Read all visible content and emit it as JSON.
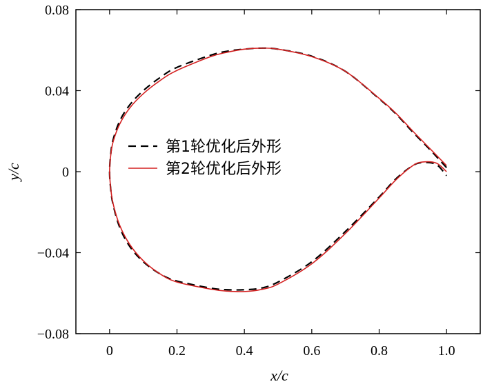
{
  "chart_data": {
    "type": "line",
    "xlabel": "x/c",
    "ylabel": "y/c",
    "xlim": [
      -0.1,
      1.1
    ],
    "ylim": [
      -0.08,
      0.08
    ],
    "xticks": [
      0,
      0.2,
      0.4,
      0.6,
      0.8,
      1.0
    ],
    "xtick_labels": [
      "0",
      "0.2",
      "0.4",
      "0.6",
      "0.8",
      "1.0"
    ],
    "yticks": [
      -0.08,
      -0.04,
      0,
      0.04,
      0.08
    ],
    "ytick_labels": [
      "−0.08",
      "−0.04",
      "0",
      "0.04",
      "0.08"
    ],
    "grid": false,
    "legend_position": "center-left",
    "series": [
      {
        "name": "第1轮优化后外形",
        "color": "#000000",
        "dash": "dashed",
        "x": [
          1.0,
          0.95,
          0.9,
          0.85,
          0.8,
          0.7,
          0.6,
          0.5,
          0.45,
          0.4,
          0.35,
          0.3,
          0.2,
          0.15,
          0.1,
          0.06,
          0.03,
          0.01,
          0.003,
          0.0,
          0.003,
          0.01,
          0.03,
          0.06,
          0.1,
          0.15,
          0.2,
          0.3,
          0.35,
          0.4,
          0.45,
          0.5,
          0.6,
          0.7,
          0.8,
          0.85,
          0.9,
          0.93,
          0.97,
          1.0
        ],
        "y": [
          0.002,
          0.011,
          0.0195,
          0.0285,
          0.036,
          0.0495,
          0.057,
          0.0605,
          0.061,
          0.0605,
          0.0595,
          0.0575,
          0.0515,
          0.0465,
          0.04,
          0.033,
          0.025,
          0.0155,
          0.008,
          0.0,
          -0.008,
          -0.016,
          -0.0275,
          -0.037,
          -0.0445,
          -0.0505,
          -0.054,
          -0.0575,
          -0.0583,
          -0.0583,
          -0.0575,
          -0.0545,
          -0.0445,
          -0.0295,
          -0.0125,
          -0.0035,
          0.003,
          0.0045,
          0.0035,
          -0.002
        ]
      },
      {
        "name": "第2轮优化后外形",
        "color": "#d42020",
        "dash": "solid",
        "x": [
          1.0,
          0.95,
          0.9,
          0.85,
          0.8,
          0.7,
          0.6,
          0.5,
          0.45,
          0.4,
          0.35,
          0.3,
          0.2,
          0.15,
          0.1,
          0.06,
          0.03,
          0.01,
          0.003,
          0.0,
          0.003,
          0.01,
          0.03,
          0.06,
          0.1,
          0.15,
          0.2,
          0.3,
          0.35,
          0.4,
          0.45,
          0.5,
          0.6,
          0.7,
          0.8,
          0.85,
          0.9,
          0.93,
          0.97,
          1.0
        ],
        "y": [
          0.003,
          0.0115,
          0.02,
          0.0288,
          0.0362,
          0.0495,
          0.0568,
          0.0605,
          0.061,
          0.0605,
          0.059,
          0.0568,
          0.05,
          0.045,
          0.0385,
          0.0315,
          0.0235,
          0.0145,
          0.0075,
          0.0,
          -0.0075,
          -0.0155,
          -0.0265,
          -0.036,
          -0.044,
          -0.0505,
          -0.0545,
          -0.058,
          -0.059,
          -0.0592,
          -0.0582,
          -0.0555,
          -0.0455,
          -0.0305,
          -0.013,
          -0.004,
          0.003,
          0.0048,
          0.0042,
          0.0
        ]
      }
    ]
  }
}
